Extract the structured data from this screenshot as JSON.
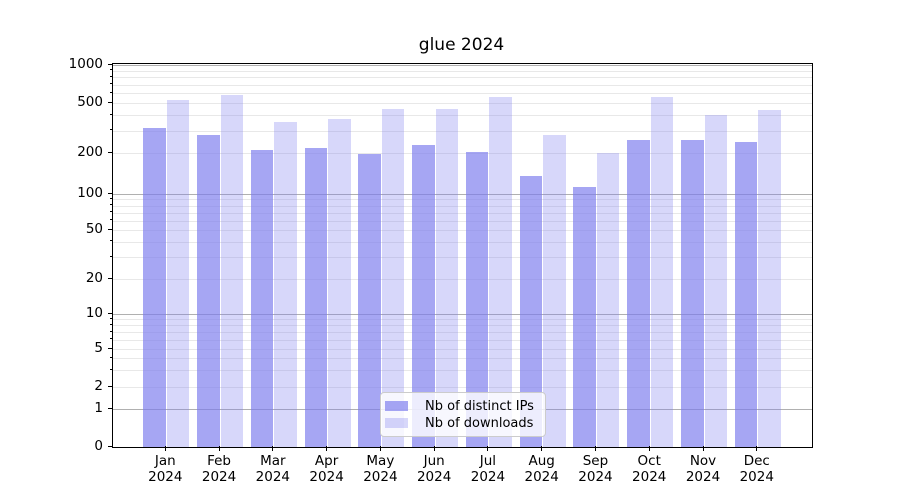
{
  "title": "glue 2024",
  "x_axis": {
    "months": [
      "Jan",
      "Feb",
      "Mar",
      "Apr",
      "May",
      "Jun",
      "Jul",
      "Aug",
      "Sep",
      "Oct",
      "Nov",
      "Dec"
    ],
    "year": "2024"
  },
  "y_axis": {
    "tick_labels": [
      "0",
      "1",
      "2",
      "5",
      "10",
      "20",
      "50",
      "100",
      "200",
      "500",
      "1000"
    ],
    "tick_values": [
      0,
      1,
      2,
      5,
      10,
      20,
      50,
      100,
      200,
      500,
      1000
    ]
  },
  "legend": {
    "items": [
      {
        "label": "Nb of distinct IPs",
        "series_key": "distinct_ips"
      },
      {
        "label": "Nb of downloads",
        "series_key": "downloads"
      }
    ]
  },
  "colors": {
    "bar_base": "#7a7aed",
    "distinct_ips_fill": "rgba(122,122,237,0.67)",
    "downloads_fill": "rgba(122,122,237,0.30)",
    "grid_major": "#b0b0b0",
    "grid_minor": "#e8e8e8",
    "spine": "#000000",
    "text": "#000000",
    "legend_border": "#cccccc"
  },
  "chart_data": {
    "type": "bar",
    "title": "glue 2024",
    "categories": [
      "Jan 2024",
      "Feb 2024",
      "Mar 2024",
      "Apr 2024",
      "May 2024",
      "Jun 2024",
      "Jul 2024",
      "Aug 2024",
      "Sep 2024",
      "Oct 2024",
      "Nov 2024",
      "Dec 2024"
    ],
    "series": [
      {
        "name": "Nb of distinct IPs",
        "values": [
          318,
          280,
          212,
          218,
          196,
          233,
          203,
          135,
          113,
          256,
          253,
          244
        ]
      },
      {
        "name": "Nb of downloads",
        "values": [
          528,
          575,
          355,
          375,
          445,
          450,
          560,
          276,
          201,
          560,
          400,
          440
        ]
      }
    ],
    "xlabel": "",
    "ylabel": "",
    "yscale": "symlog",
    "y_ticks": [
      0,
      1,
      2,
      5,
      10,
      20,
      50,
      100,
      200,
      500,
      1000
    ],
    "ylim": [
      0,
      1000
    ],
    "grid": true,
    "legend_position": "lower center"
  }
}
